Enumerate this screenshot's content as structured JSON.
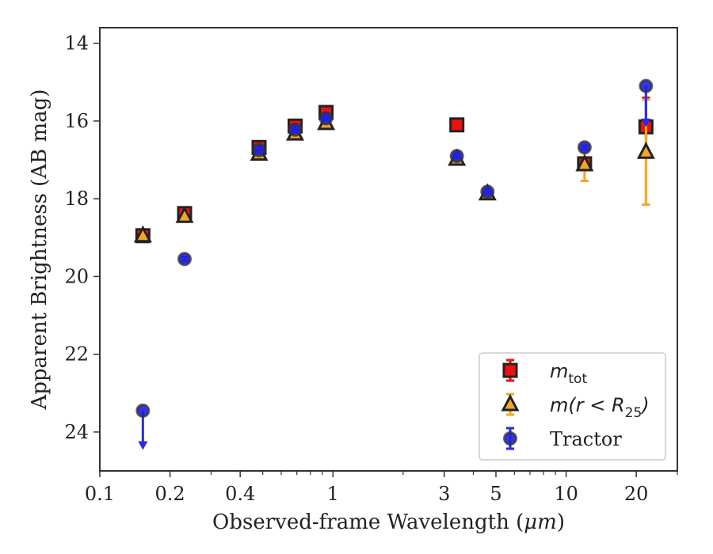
{
  "chart_data": {
    "type": "scatter",
    "xlabel_prefix": "Observed-frame Wavelength (",
    "xlabel_unit": "μm",
    "xlabel_suffix": ")",
    "ylabel": "Apparent Brightness (AB mag)",
    "xscale": "log",
    "xlim": [
      0.1,
      30
    ],
    "ylim": [
      25,
      13.6
    ],
    "y_inverted": true,
    "x_ticks": [
      {
        "value": 0.1,
        "label": "0.1"
      },
      {
        "value": 0.2,
        "label": "0.2"
      },
      {
        "value": 0.4,
        "label": "0.4"
      },
      {
        "value": 1,
        "label": "1"
      },
      {
        "value": 3,
        "label": "3"
      },
      {
        "value": 5,
        "label": "5"
      },
      {
        "value": 10,
        "label": "10"
      },
      {
        "value": 20,
        "label": "20"
      }
    ],
    "y_ticks": [
      {
        "value": 14,
        "label": "14"
      },
      {
        "value": 16,
        "label": "16"
      },
      {
        "value": 18,
        "label": "18"
      },
      {
        "value": 20,
        "label": "20"
      },
      {
        "value": 22,
        "label": "22"
      },
      {
        "value": 24,
        "label": "24"
      }
    ],
    "grid": false,
    "legend_position": "bottom-right",
    "series": [
      {
        "name": "m_tot",
        "legend_math": "m",
        "legend_sub": "tot",
        "legend_after": "",
        "marker": "square",
        "color": "#ee1111",
        "errcolor": "#ee1111",
        "points": [
          {
            "x": 0.153,
            "y": 18.95,
            "yerr": 0.08
          },
          {
            "x": 0.231,
            "y": 18.38,
            "yerr": 0.08
          },
          {
            "x": 0.482,
            "y": 16.68,
            "yerr": 0.05
          },
          {
            "x": 0.688,
            "y": 16.13,
            "yerr": 0.05
          },
          {
            "x": 0.934,
            "y": 15.78,
            "yerr": 0.05
          },
          {
            "x": 3.4,
            "y": 16.1,
            "yerr": 0.04
          },
          {
            "x": 12.0,
            "y": 17.1,
            "yerr": 0.08
          },
          {
            "x": 22.0,
            "y": 16.15,
            "yerr": 0.75
          }
        ]
      },
      {
        "name": "m(r < R_25)",
        "legend_math": "m(r < R",
        "legend_sub": "25",
        "legend_after": ")",
        "marker": "triangle",
        "color": "#f5a623",
        "errcolor": "#f5a623",
        "points": [
          {
            "x": 0.153,
            "y": 18.95,
            "yerr": 0.08
          },
          {
            "x": 0.231,
            "y": 18.45,
            "yerr": 0.08
          },
          {
            "x": 0.482,
            "y": 16.85,
            "yerr": 0.05
          },
          {
            "x": 0.688,
            "y": 16.33,
            "yerr": 0.05
          },
          {
            "x": 0.934,
            "y": 16.06,
            "yerr": 0.05
          },
          {
            "x": 3.4,
            "y": 16.98,
            "yerr": 0.04
          },
          {
            "x": 4.6,
            "y": 17.87,
            "yerr": 0.05
          },
          {
            "x": 12.0,
            "y": 17.12,
            "yerr": 0.42
          },
          {
            "x": 22.0,
            "y": 16.8,
            "yerr": 1.35
          }
        ]
      },
      {
        "name": "Tractor",
        "legend_math": "",
        "legend_sub": "",
        "legend_after": "",
        "marker": "circle",
        "color": "#2020dd",
        "errcolor": "#2a2aee",
        "points": [
          {
            "x": 0.153,
            "y": 23.45,
            "upper_limit_arrow_to": 24.4
          },
          {
            "x": 0.231,
            "y": 19.55,
            "yerr": 0.05
          },
          {
            "x": 0.482,
            "y": 16.75,
            "yerr": 0.05
          },
          {
            "x": 0.688,
            "y": 16.22,
            "yerr": 0.05
          },
          {
            "x": 0.934,
            "y": 15.93,
            "yerr": 0.05
          },
          {
            "x": 3.4,
            "y": 16.9,
            "yerr": 0.05
          },
          {
            "x": 4.6,
            "y": 17.82,
            "yerr": 0.05
          },
          {
            "x": 12.0,
            "y": 16.68,
            "yerr": 0.05
          },
          {
            "x": 22.0,
            "y": 15.1,
            "upper_limit_arrow_to": 16.1
          }
        ]
      }
    ]
  }
}
